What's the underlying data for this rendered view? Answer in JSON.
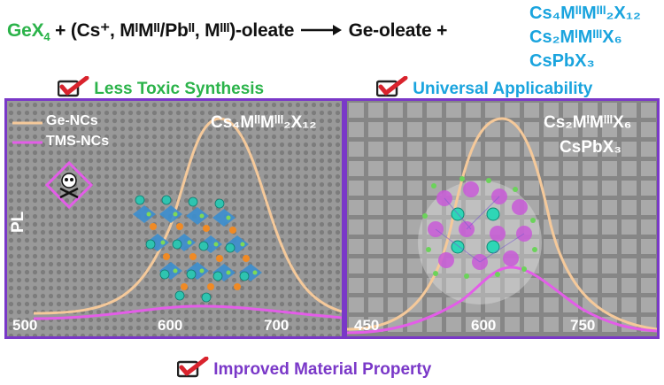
{
  "equation": {
    "reactant": "GeX",
    "reactant_sub": "4",
    "plus1": "+",
    "oleate": "(Cs⁺, MᴵMᴵᴵ/Pbᴵᴵ, Mᴵᴵᴵ)-oleate",
    "product": "Ge-oleate +",
    "products": [
      "Cs₄MᴵᴵMᴵᴵᴵ₂X₁₂",
      "Cs₂MᴵMᴵᴵᴵX₆",
      "CsPbX₃"
    ]
  },
  "tags": {
    "left": "Less Toxic Synthesis",
    "right": "Universal Applicability",
    "bottom": "Improved Material Property"
  },
  "left_panel": {
    "formula": "Cs₄MᴵᴵMᴵᴵᴵ₂X₁₂",
    "legend": [
      "Ge-NCs",
      "TMS-NCs"
    ],
    "ylabel": "PL",
    "ticks": [
      "500",
      "600",
      "700"
    ]
  },
  "right_panel": {
    "formula_1": "Cs₂MᴵMᴵᴵᴵX₆",
    "formula_2": "CsPbX₃",
    "ticks": [
      "450",
      "600",
      "750"
    ]
  },
  "colors": {
    "green": "#2bb34a",
    "blue": "#1aa4de",
    "purple": "#7a38c8",
    "ge_curve": "#f5c99a",
    "tms_curve": "#e35de8",
    "check_red": "#d9232d"
  }
}
